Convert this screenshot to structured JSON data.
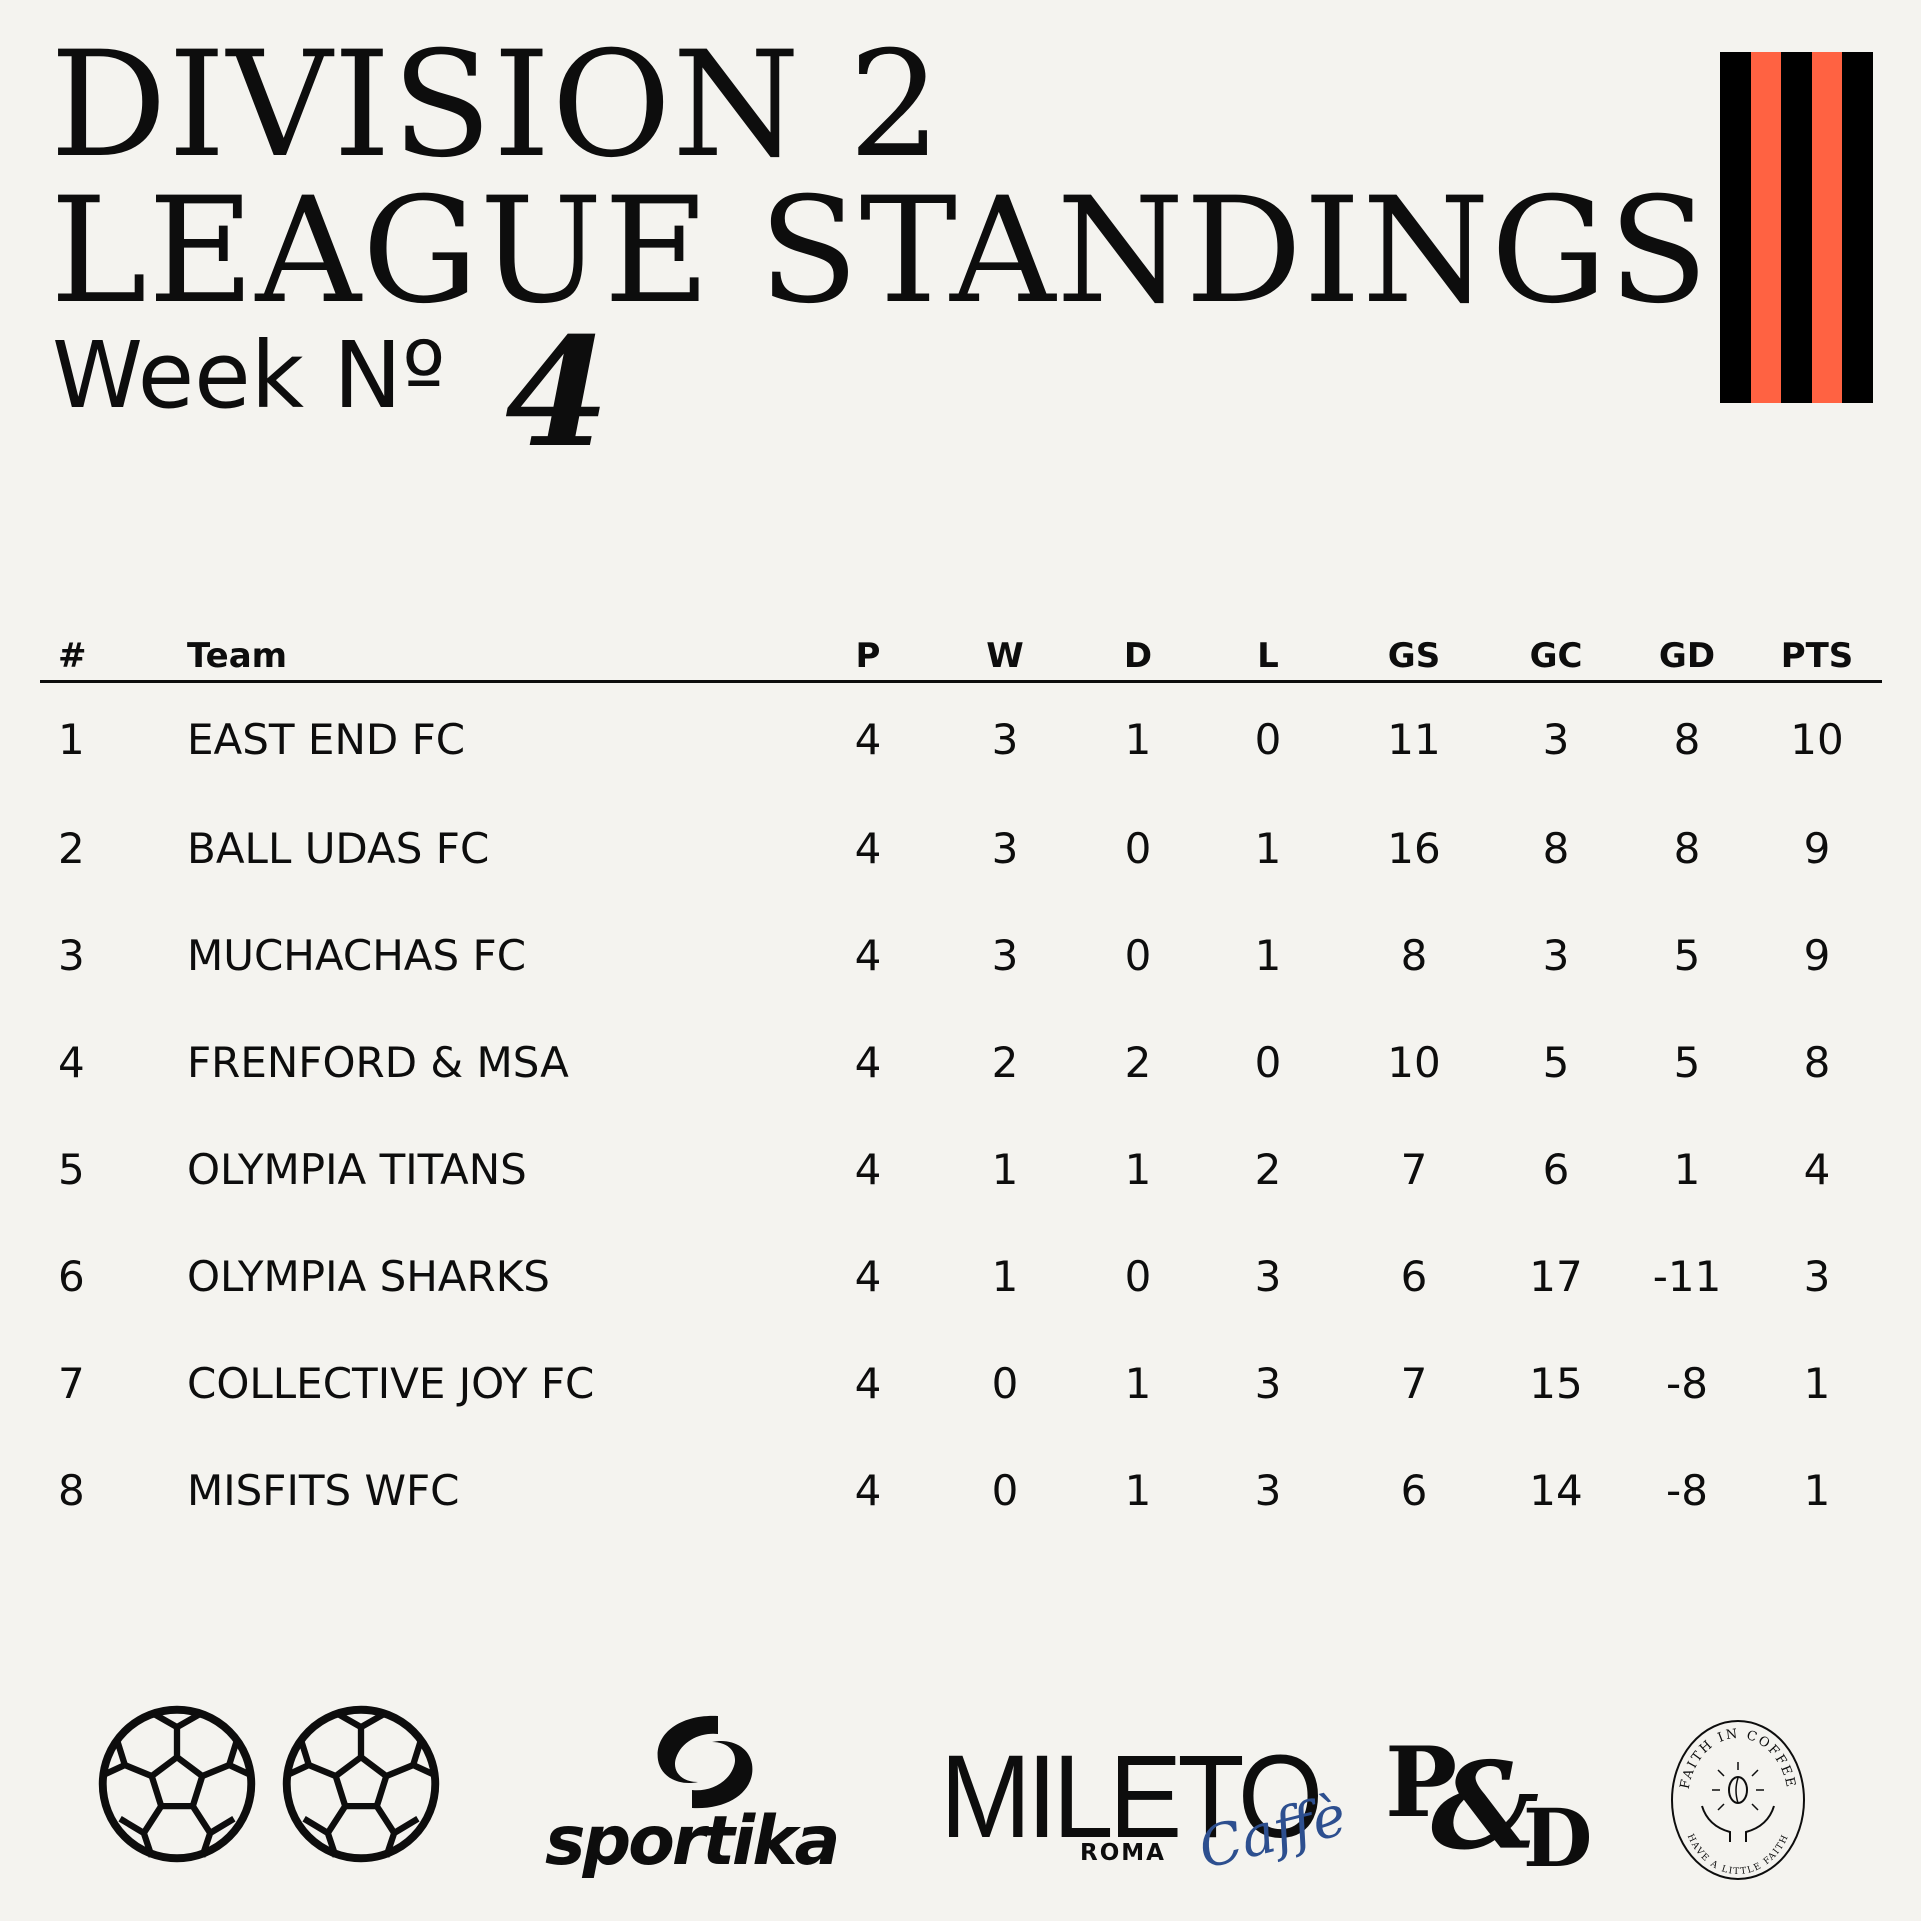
{
  "header": {
    "title_line1": "DIVISION 2",
    "title_line2": "LEAGUE STANDINGS",
    "week_label": "Week Nº",
    "week_number": "4"
  },
  "colors": {
    "background": "#f4f3ef",
    "text": "#0d0d0d",
    "stripe_black": "#000000",
    "stripe_orange": "#ff6242",
    "caffe_blue": "#2d4f8f"
  },
  "decor": {
    "stripes_icon": "black-orange-vertical-stripes",
    "football_icon": "football-icon"
  },
  "table": {
    "headers": [
      "#",
      "Team",
      "P",
      "W",
      "D",
      "L",
      "GS",
      "GC",
      "GD",
      "PTS"
    ],
    "rows": [
      [
        "1",
        "EAST END FC",
        "4",
        "3",
        "1",
        "0",
        "11",
        "3",
        "8",
        "10"
      ],
      [
        "2",
        "BALL UDAS FC",
        "4",
        "3",
        "0",
        "1",
        "16",
        "8",
        "8",
        "9"
      ],
      [
        "3",
        "MUCHACHAS FC",
        "4",
        "3",
        "0",
        "1",
        "8",
        "3",
        "5",
        "9"
      ],
      [
        "4",
        "FRENFORD & MSA",
        "4",
        "2",
        "2",
        "0",
        "10",
        "5",
        "5",
        "8"
      ],
      [
        "5",
        "OLYMPIA TITANS",
        "4",
        "1",
        "1",
        "2",
        "7",
        "6",
        "1",
        "4"
      ],
      [
        "6",
        "OLYMPIA SHARKS",
        "4",
        "1",
        "0",
        "3",
        "6",
        "17",
        "-11",
        "3"
      ],
      [
        "7",
        "COLLECTIVE JOY FC",
        "4",
        "0",
        "1",
        "3",
        "7",
        "15",
        "-8",
        "1"
      ],
      [
        "8",
        "MISFITS WFC",
        "4",
        "0",
        "1",
        "3",
        "6",
        "14",
        "-8",
        "1"
      ]
    ]
  },
  "sponsors": {
    "sportika": "sportika",
    "mileto": "MILETO",
    "mileto_sub": "ROMA",
    "mileto_script": "Caffè",
    "pd": "P&D",
    "faith_top": "FAITH IN COFFEE",
    "faith_bottom": "HAVE A LITTLE FAITH"
  }
}
